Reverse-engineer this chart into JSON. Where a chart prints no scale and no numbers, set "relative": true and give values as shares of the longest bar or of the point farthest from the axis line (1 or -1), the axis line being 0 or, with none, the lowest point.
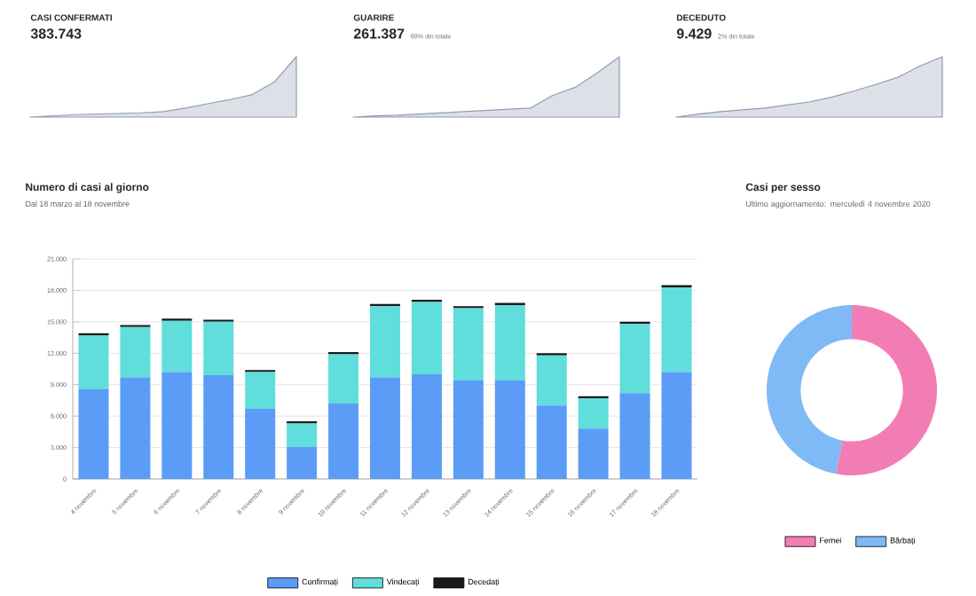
{
  "chart_data": [
    {
      "type": "area",
      "title": "CASI CONFERMATI",
      "subtitle": "383.743",
      "relative": true,
      "categories": [
        null,
        null,
        null,
        null,
        null,
        null,
        null,
        null,
        null,
        null,
        null,
        null,
        null
      ],
      "series": [
        {
          "color": "#8f9cb0",
          "values": [
            0,
            0.02,
            0.04,
            0.05,
            0.06,
            0.07,
            0.09,
            0.15,
            0.22,
            0.29,
            0.37,
            0.58,
            1
          ]
        }
      ]
    },
    {
      "type": "area",
      "title": "GUARIRE",
      "subtitle": "261.387",
      "annotations": [
        "68% din totale"
      ],
      "relative": true,
      "categories": [
        null,
        null,
        null,
        null,
        null,
        null,
        null,
        null,
        null,
        null,
        null,
        null,
        null
      ],
      "series": [
        {
          "color": "#8f9cb0",
          "values": [
            0,
            0.02,
            0.03,
            0.05,
            0.07,
            0.09,
            0.11,
            0.13,
            0.15,
            0.36,
            0.49,
            0.73,
            1
          ]
        }
      ]
    },
    {
      "type": "area",
      "title": "DECEDUTO",
      "subtitle": "9.429",
      "annotations": [
        "2% din totale"
      ],
      "relative": true,
      "categories": [
        null,
        null,
        null,
        null,
        null,
        null,
        null,
        null,
        null,
        null,
        null,
        null,
        null
      ],
      "series": [
        {
          "color": "#8f9cb0",
          "values": [
            0,
            0.05,
            0.09,
            0.12,
            0.15,
            0.2,
            0.25,
            0.33,
            0.43,
            0.54,
            0.66,
            0.85,
            1
          ]
        }
      ]
    },
    {
      "type": "bar",
      "title": "Numero di casi al giorno",
      "subtitle": "Dal 18 marzo al 18 novembre",
      "stacked": true,
      "grid": "y",
      "legend": "bottom",
      "categories": [
        "4 novembre",
        "5 novembre",
        "6 novembre",
        "7 novembre",
        "8 novembre",
        "9 novembre",
        "10 novembre",
        "11 novembre",
        "12 novembre",
        "13 novembre",
        "14 novembre",
        "15 novembre",
        "16 novembre",
        "17 novembre",
        "18 novembre"
      ],
      "ylim": [
        0,
        21000
      ],
      "yticks": [
        0,
        {
          "value": 3000,
          "label": "3.000"
        },
        {
          "value": 6000,
          "label": "6.000"
        },
        {
          "value": 9000,
          "label": "9.000"
        },
        {
          "value": 12000,
          "label": "12.000"
        },
        {
          "value": 15000,
          "label": "15.000"
        },
        {
          "value": 18000,
          "label": "18.000"
        },
        {
          "value": 21000,
          "label": "21.000"
        }
      ],
      "series": [
        {
          "name": "Confirmați",
          "color": "#5b9cf6",
          "values": [
            8600,
            9700,
            10200,
            9900,
            6700,
            3100,
            7200,
            9700,
            10000,
            9400,
            9400,
            7000,
            4800,
            8200,
            10200
          ]
        },
        {
          "name": "Vindecați",
          "color": "#5fdedb",
          "values": [
            5100,
            4800,
            4900,
            5100,
            3500,
            2200,
            4700,
            6800,
            6900,
            6900,
            7200,
            4800,
            2900,
            6600,
            8100
          ]
        },
        {
          "name": "Decedați",
          "color": "#1a1a1a",
          "values": [
            200,
            200,
            200,
            200,
            200,
            200,
            200,
            200,
            200,
            200,
            200,
            200,
            200,
            200,
            200
          ]
        }
      ]
    },
    {
      "type": "donut",
      "title": "Casi per sesso",
      "subtitle": "Ultimo aggiornamento: mercoledì 4 novembre 2020",
      "legend": "bottom",
      "categories": [
        "Femei",
        "Bărbați"
      ],
      "values": [
        53,
        47
      ],
      "colors": [
        "#f27db5",
        "#7fb9f6"
      ]
    }
  ]
}
